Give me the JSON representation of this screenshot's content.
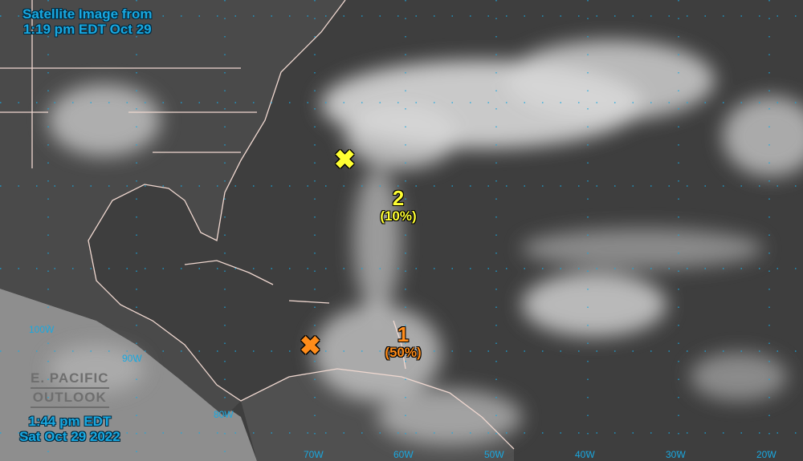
{
  "header": {
    "line1": "Satellite Image from",
    "line2": "1:19 pm EDT Oct 29"
  },
  "footer": {
    "time": "1:44 pm EDT",
    "date": "Sat Oct 29 2022"
  },
  "pacific_outlook": {
    "line1": "E. PACIFIC",
    "line2": "OUTLOOK"
  },
  "longitudes": [
    "100W",
    "90W",
    "80W",
    "70W",
    "60W",
    "50W",
    "40W",
    "30W",
    "20W"
  ],
  "disturbances": [
    {
      "id": "1",
      "chance": "(50%)",
      "color": "#ff8c1a",
      "marker": "x-icon"
    },
    {
      "id": "2",
      "chance": "(10%)",
      "color": "#ffff33",
      "marker": "x-icon"
    }
  ],
  "colors": {
    "label": "#19a8e0",
    "grid": "#19a8e0",
    "coast": "#f0d8d0"
  }
}
